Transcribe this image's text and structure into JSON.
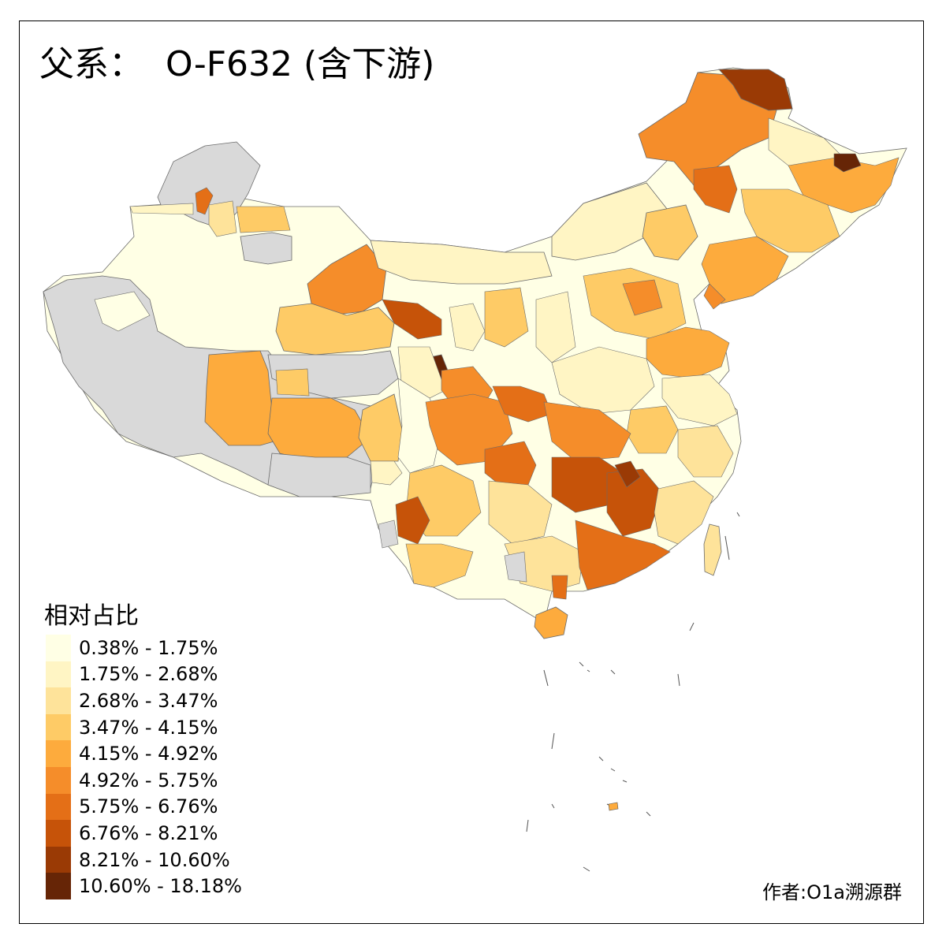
{
  "title": "父系：  O-F632 (含下游)",
  "legend": {
    "title": "相对占比",
    "items": [
      {
        "label": "0.38% - 1.75%",
        "color": "#FFFFE5"
      },
      {
        "label": "1.75% - 2.68%",
        "color": "#FFF5C4"
      },
      {
        "label": "2.68% - 3.47%",
        "color": "#FEE39A"
      },
      {
        "label": "3.47% - 4.15%",
        "color": "#FECB66"
      },
      {
        "label": "4.15% - 4.92%",
        "color": "#FDAB3D"
      },
      {
        "label": "4.92% - 5.75%",
        "color": "#F58D2A"
      },
      {
        "label": "5.75% - 6.76%",
        "color": "#E46F17"
      },
      {
        "label": "6.76% - 8.21%",
        "color": "#C65309"
      },
      {
        "label": "8.21% - 10.60%",
        "color": "#9A3A05"
      },
      {
        "label": "10.60% - 18.18%",
        "color": "#662506"
      }
    ]
  },
  "no_data_color": "#D9D9D9",
  "credit": "作者:O1a溯源群"
}
